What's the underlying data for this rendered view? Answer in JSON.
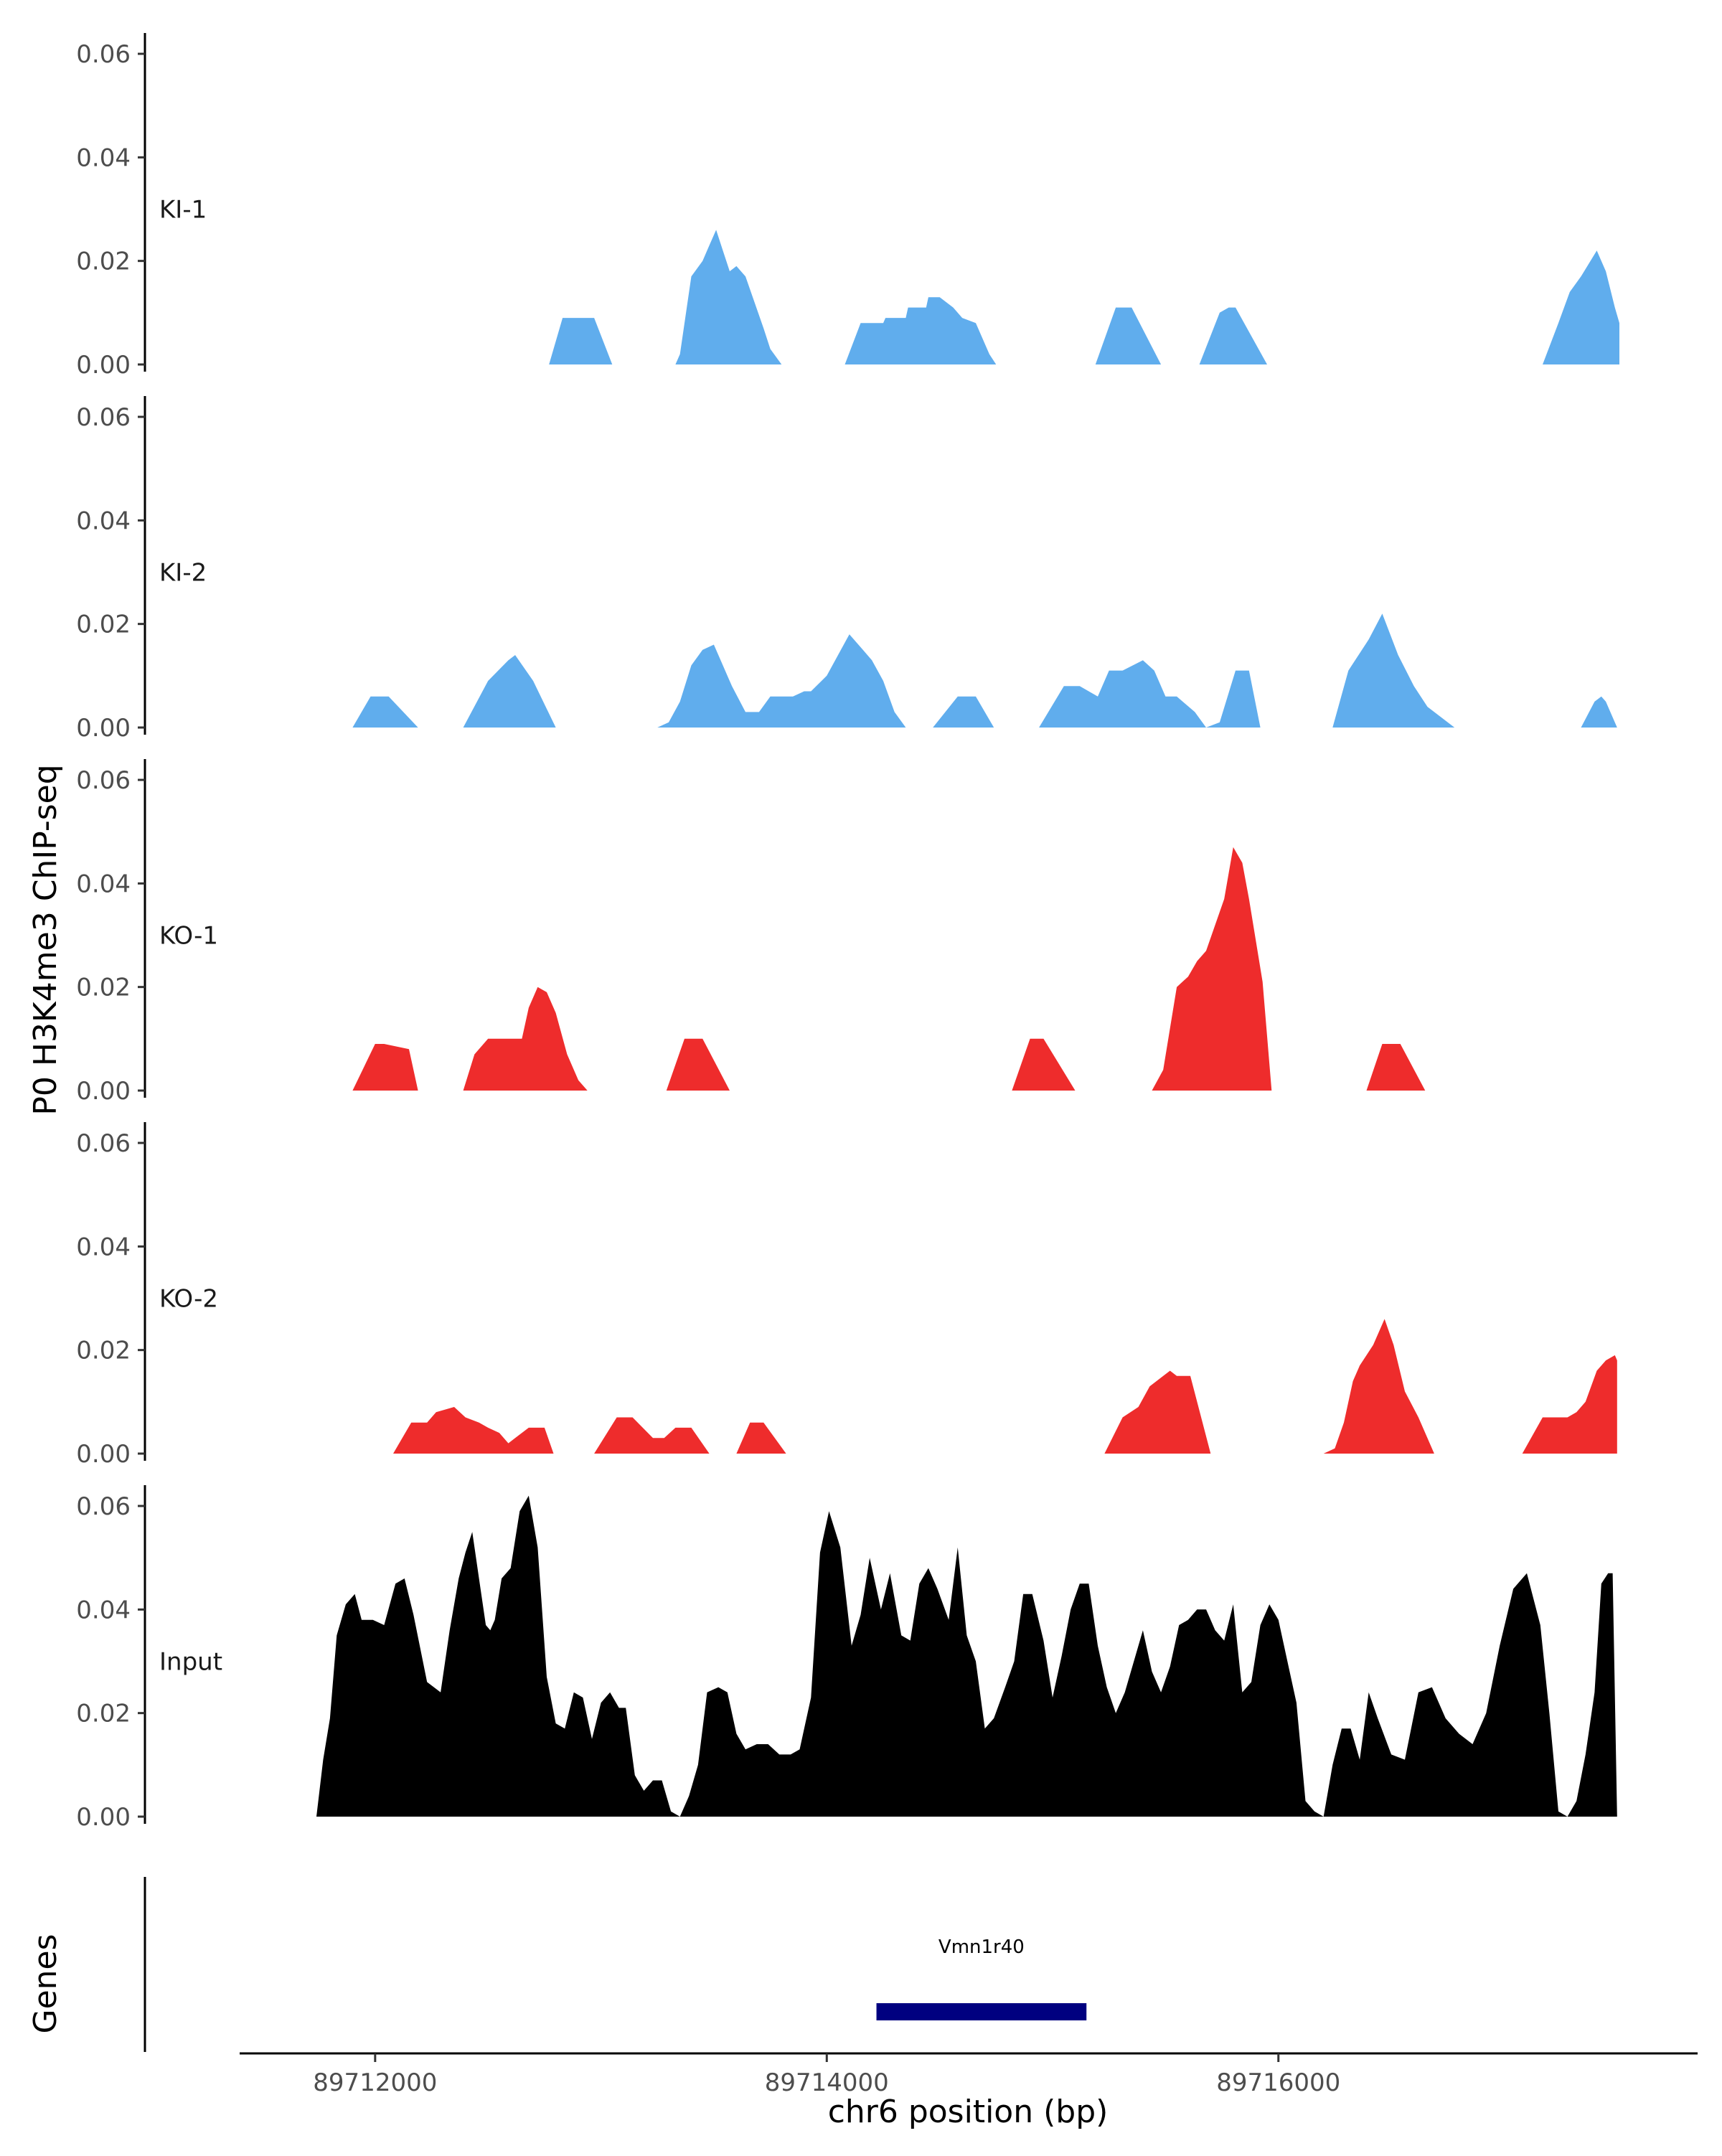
{
  "chart_data": {
    "type": "area",
    "ylabel": "P0 H3K4me3 ChIP-seq",
    "xlabel": "chr6 position (bp)",
    "genes_label": "Genes",
    "xlim": [
      89711400,
      89717850
    ],
    "ylim": [
      0,
      0.063
    ],
    "x_ticks": [
      89712000,
      89714000,
      89716000
    ],
    "x_tick_labels": [
      "89712000",
      "89714000",
      "89716000"
    ],
    "y_ticks": [
      0,
      0.02,
      0.04,
      0.06
    ],
    "y_tick_labels": [
      "0.00",
      "0.02",
      "0.04",
      "0.06"
    ],
    "colors": {
      "KI": "#60aded",
      "KO": "#ee2c2c",
      "Input": "#000000",
      "gene": "#000080"
    },
    "tracks": [
      {
        "name": "KI-1",
        "color": "#60aded",
        "x": [
          89712770,
          89712830,
          89712880,
          89712970,
          89713050,
          89713330,
          89713350,
          89713400,
          89713450,
          89713480,
          89713510,
          89713540,
          89713570,
          89713600,
          89713640,
          89713680,
          89713720,
          89713750,
          89713800,
          89713850,
          89714080,
          89714150,
          89714250,
          89714260,
          89714350,
          89714360,
          89714440,
          89714450,
          89714500,
          89714560,
          89714600,
          89714660,
          89714720,
          89714750,
          89715190,
          89715280,
          89715350,
          89715480,
          89715650,
          89715740,
          89715780,
          89715810,
          89715950,
          89717170,
          89717240,
          89717290,
          89717340,
          89717410,
          89717450,
          89717490,
          89717510
        ],
        "y": [
          0,
          0.009,
          0.009,
          0.009,
          0,
          0,
          0.002,
          0.017,
          0.02,
          0.023,
          0.026,
          0.022,
          0.018,
          0.019,
          0.017,
          0.012,
          0.007,
          0.003,
          0,
          0,
          0,
          0.008,
          0.008,
          0.009,
          0.009,
          0.011,
          0.011,
          0.013,
          0.013,
          0.011,
          0.009,
          0.008,
          0.002,
          0,
          0,
          0.011,
          0.011,
          0,
          0,
          0.01,
          0.011,
          0.011,
          0,
          0,
          0.008,
          0.014,
          0.017,
          0.022,
          0.018,
          0.011,
          0.008
        ]
      },
      {
        "name": "KI-2",
        "color": "#60aded",
        "x": [
          89711900,
          89711980,
          89712060,
          89712190,
          89712390,
          89712500,
          89712590,
          89712620,
          89712700,
          89712800,
          89713250,
          89713300,
          89713350,
          89713400,
          89713450,
          89713500,
          89713540,
          89713580,
          89713640,
          89713700,
          89713750,
          89713800,
          89713850,
          89713900,
          89713930,
          89714000,
          89714100,
          89714160,
          89714200,
          89714250,
          89714300,
          89714350,
          89714390,
          89714430,
          89714470,
          89714580,
          89714660,
          89714740,
          89714940,
          89715050,
          89715120,
          89715200,
          89715250,
          89715310,
          89715400,
          89715450,
          89715500,
          89715550,
          89715630,
          89715680,
          89715740,
          89715810,
          89715870,
          89715920,
          89716240,
          89716310,
          89716400,
          89716460,
          89716530,
          89716600,
          89716660,
          89716780,
          89717340,
          89717400,
          89717430,
          89717450,
          89717500
        ],
        "y": [
          0,
          0.006,
          0.006,
          0,
          0,
          0.009,
          0.013,
          0.014,
          0.009,
          0,
          0,
          0.001,
          0.005,
          0.012,
          0.015,
          0.016,
          0.012,
          0.008,
          0.003,
          0.003,
          0.006,
          0.006,
          0.006,
          0.007,
          0.007,
          0.01,
          0.018,
          0.015,
          0.013,
          0.009,
          0.003,
          0,
          0,
          0,
          0,
          0.006,
          0.006,
          0,
          0,
          0.008,
          0.008,
          0.006,
          0.011,
          0.011,
          0.013,
          0.011,
          0.006,
          0.006,
          0.003,
          0,
          0.001,
          0.011,
          0.011,
          0,
          0,
          0.011,
          0.017,
          0.022,
          0.014,
          0.008,
          0.004,
          0,
          0,
          0.005,
          0.006,
          0.005,
          0
        ]
      },
      {
        "name": "KO-1",
        "color": "#ee2c2c",
        "x": [
          89711900,
          89712000,
          89712040,
          89712150,
          89712190,
          89712390,
          89712440,
          89712500,
          89712550,
          89712600,
          89712650,
          89712680,
          89712720,
          89712760,
          89712800,
          89712850,
          89712900,
          89712940,
          89713290,
          89713370,
          89713450,
          89713570,
          89714820,
          89714900,
          89714960,
          89715100,
          89715440,
          89715490,
          89715550,
          89715600,
          89715640,
          89715680,
          89715720,
          89715760,
          89715800,
          89715840,
          89715870,
          89715930,
          89715970,
          89716390,
          89716460,
          89716540,
          89716650
        ],
        "y": [
          0,
          0.009,
          0.009,
          0.008,
          0,
          0,
          0.007,
          0.01,
          0.01,
          0.01,
          0.01,
          0.016,
          0.02,
          0.019,
          0.015,
          0.007,
          0.002,
          0,
          0,
          0.01,
          0.01,
          0,
          0,
          0.01,
          0.01,
          0,
          0,
          0.004,
          0.02,
          0.022,
          0.025,
          0.027,
          0.032,
          0.037,
          0.047,
          0.044,
          0.037,
          0.021,
          0,
          0,
          0.009,
          0.009,
          0
        ]
      },
      {
        "name": "KO-2",
        "color": "#ee2c2c",
        "x": [
          89712080,
          89712160,
          89712230,
          89712270,
          89712350,
          89712400,
          89712460,
          89712500,
          89712550,
          89712590,
          89712620,
          89712680,
          89712750,
          89712790,
          89712970,
          89713070,
          89713140,
          89713230,
          89713280,
          89713330,
          89713400,
          89713480,
          89713600,
          89713660,
          89713720,
          89713820,
          89715230,
          89715310,
          89715380,
          89715430,
          89715490,
          89715520,
          89715550,
          89715610,
          89715700,
          89716200,
          89716250,
          89716290,
          89716330,
          89716360,
          89716420,
          89716470,
          89716510,
          89716560,
          89716620,
          89716690,
          89717080,
          89717170,
          89717280,
          89717320,
          89717360,
          89717410,
          89717450,
          89717490,
          89717500
        ],
        "y": [
          0,
          0.006,
          0.006,
          0.008,
          0.009,
          0.007,
          0.006,
          0.005,
          0.004,
          0.002,
          0.003,
          0.005,
          0.005,
          0,
          0,
          0.007,
          0.007,
          0.003,
          0.003,
          0.005,
          0.005,
          0,
          0,
          0.006,
          0.006,
          0,
          0,
          0.007,
          0.009,
          0.013,
          0.015,
          0.016,
          0.015,
          0.015,
          0,
          0,
          0.001,
          0.006,
          0.014,
          0.017,
          0.021,
          0.026,
          0.021,
          0.012,
          0.007,
          0,
          0,
          0.007,
          0.007,
          0.008,
          0.01,
          0.016,
          0.018,
          0.019,
          0.018
        ]
      },
      {
        "name": "Input",
        "color": "#000000",
        "x": [
          89711740,
          89711770,
          89711800,
          89711830,
          89711870,
          89711910,
          89711940,
          89711990,
          89712040,
          89712090,
          89712130,
          89712170,
          89712230,
          89712290,
          89712330,
          89712370,
          89712400,
          89712430,
          89712460,
          89712490,
          89712510,
          89712530,
          89712560,
          89712600,
          89712640,
          89712680,
          89712720,
          89712760,
          89712800,
          89712840,
          89712880,
          89712920,
          89712960,
          89713000,
          89713040,
          89713080,
          89713110,
          89713150,
          89713190,
          89713230,
          89713270,
          89713310,
          89713350,
          89713390,
          89713430,
          89713470,
          89713520,
          89713560,
          89713600,
          89713640,
          89713690,
          89713740,
          89713790,
          89713840,
          89713880,
          89713930,
          89713970,
          89714010,
          89714060,
          89714110,
          89714150,
          89714190,
          89714240,
          89714280,
          89714330,
          89714370,
          89714410,
          89714450,
          89714490,
          89714540,
          89714580,
          89714620,
          89714660,
          89714700,
          89714740,
          89714790,
          89714830,
          89714870,
          89714910,
          89714960,
          89715000,
          89715040,
          89715080,
          89715120,
          89715160,
          89715200,
          89715240,
          89715280,
          89715320,
          89715360,
          89715400,
          89715440,
          89715480,
          89715520,
          89715560,
          89715600,
          89715640,
          89715680,
          89715720,
          89715760,
          89715800,
          89715840,
          89715880,
          89715920,
          89715960,
          89716000,
          89716040,
          89716080,
          89716120,
          89716160,
          89716200,
          89716240,
          89716280,
          89716320,
          89716360,
          89716400,
          89716440,
          89716500,
          89716560,
          89716620,
          89716680,
          89716740,
          89716800,
          89716860,
          89716920,
          89716980,
          89717040,
          89717100,
          89717160,
          89717200,
          89717240,
          89717280,
          89717320,
          89717360,
          89717400,
          89717430,
          89717460,
          89717480,
          89717500,
          89717510
        ],
        "y": [
          0,
          0.011,
          0.019,
          0.035,
          0.041,
          0.043,
          0.038,
          0.038,
          0.037,
          0.045,
          0.046,
          0.039,
          0.026,
          0.024,
          0.036,
          0.046,
          0.051,
          0.055,
          0.046,
          0.037,
          0.036,
          0.038,
          0.046,
          0.048,
          0.059,
          0.062,
          0.052,
          0.027,
          0.018,
          0.017,
          0.024,
          0.023,
          0.015,
          0.022,
          0.024,
          0.021,
          0.021,
          0.008,
          0.005,
          0.007,
          0.007,
          0.001,
          0,
          0.004,
          0.01,
          0.024,
          0.025,
          0.024,
          0.016,
          0.013,
          0.014,
          0.014,
          0.012,
          0.012,
          0.013,
          0.023,
          0.051,
          0.059,
          0.052,
          0.033,
          0.039,
          0.05,
          0.04,
          0.047,
          0.035,
          0.034,
          0.045,
          0.048,
          0.044,
          0.038,
          0.052,
          0.035,
          0.03,
          0.017,
          0.019,
          0.025,
          0.03,
          0.043,
          0.043,
          0.034,
          0.023,
          0.031,
          0.04,
          0.045,
          0.045,
          0.033,
          0.025,
          0.02,
          0.024,
          0.03,
          0.036,
          0.028,
          0.024,
          0.029,
          0.037,
          0.038,
          0.04,
          0.04,
          0.036,
          0.034,
          0.041,
          0.024,
          0.026,
          0.037,
          0.041,
          0.038,
          0.03,
          0.022,
          0.003,
          0.001,
          0,
          0.01,
          0.017,
          0.017,
          0.011,
          0.024,
          0.019,
          0.012,
          0.011,
          0.024,
          0.025,
          0.019,
          0.016,
          0.014,
          0.02,
          0.033,
          0.044,
          0.047,
          0.037,
          0.02,
          0.001,
          0,
          0.003,
          0.012,
          0.024,
          0.045,
          0.047,
          0.047,
          0,
          0
        ]
      }
    ],
    "genes": [
      {
        "name": "Vmn1r40",
        "start": 89714220,
        "end": 89715150,
        "strand": "-"
      }
    ]
  }
}
